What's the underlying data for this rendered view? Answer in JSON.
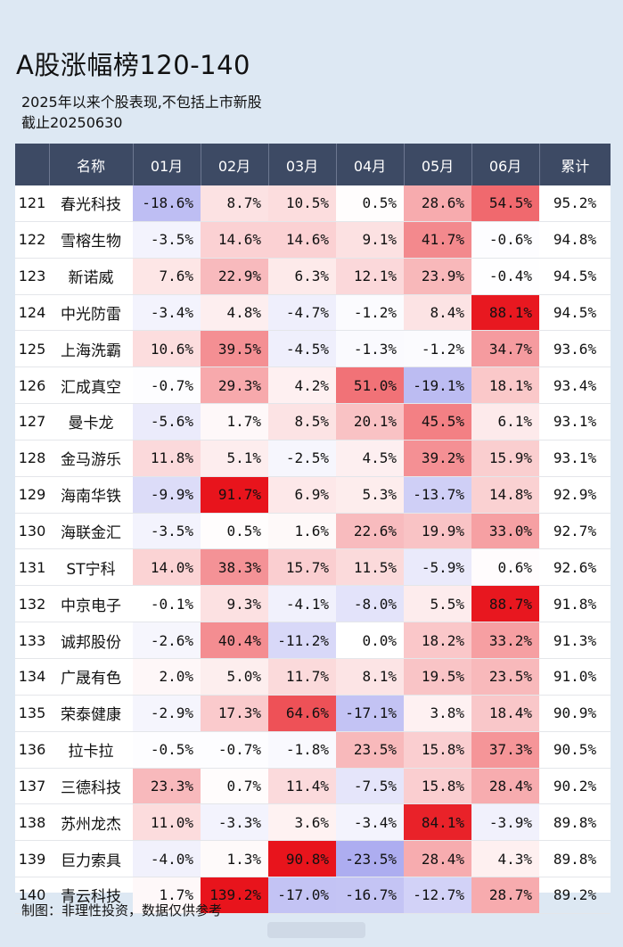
{
  "title": "A股涨幅榜120-140",
  "subtitle": "2025年以来个股表现,不包括上市新股",
  "date_note": "截止20250630",
  "footer": "制图：非理性投资，数据仅供参考",
  "headers": [
    "",
    "名称",
    "01月",
    "02月",
    "03月",
    "04月",
    "05月",
    "06月",
    "累计"
  ],
  "colors": {
    "header_bg": "#3d4a64",
    "positive": "#e8141c",
    "negative": "#5a5ae0",
    "background": "#dde8f3"
  },
  "rows": [
    {
      "rank": "121",
      "name": "春光科技",
      "months": [
        "-18.6%",
        "8.7%",
        "10.5%",
        "0.5%",
        "28.6%",
        "54.5%"
      ],
      "cum": "95.2%"
    },
    {
      "rank": "122",
      "name": "雪榕生物",
      "months": [
        "-3.5%",
        "14.6%",
        "14.6%",
        "9.1%",
        "41.7%",
        "-0.6%"
      ],
      "cum": "94.8%"
    },
    {
      "rank": "123",
      "name": "新诺威",
      "months": [
        "7.6%",
        "22.9%",
        "6.3%",
        "12.1%",
        "23.9%",
        "-0.4%"
      ],
      "cum": "94.5%"
    },
    {
      "rank": "124",
      "name": "中光防雷",
      "months": [
        "-3.4%",
        "4.8%",
        "-4.7%",
        "-1.2%",
        "8.4%",
        "88.1%"
      ],
      "cum": "94.5%"
    },
    {
      "rank": "125",
      "name": "上海洗霸",
      "months": [
        "10.6%",
        "39.5%",
        "-4.5%",
        "-1.3%",
        "-1.2%",
        "34.7%"
      ],
      "cum": "93.6%"
    },
    {
      "rank": "126",
      "name": "汇成真空",
      "months": [
        "-0.7%",
        "29.3%",
        "4.2%",
        "51.0%",
        "-19.1%",
        "18.1%"
      ],
      "cum": "93.4%"
    },
    {
      "rank": "127",
      "name": "曼卡龙",
      "months": [
        "-5.6%",
        "1.7%",
        "8.5%",
        "20.1%",
        "45.5%",
        "6.1%"
      ],
      "cum": "93.1%"
    },
    {
      "rank": "128",
      "name": "金马游乐",
      "months": [
        "11.8%",
        "5.1%",
        "-2.5%",
        "4.5%",
        "39.2%",
        "15.9%"
      ],
      "cum": "93.1%"
    },
    {
      "rank": "129",
      "name": "海南华铁",
      "months": [
        "-9.9%",
        "91.7%",
        "6.9%",
        "5.3%",
        "-13.7%",
        "14.8%"
      ],
      "cum": "92.9%"
    },
    {
      "rank": "130",
      "name": "海联金汇",
      "months": [
        "-3.5%",
        "0.5%",
        "1.6%",
        "22.6%",
        "19.9%",
        "33.0%"
      ],
      "cum": "92.7%"
    },
    {
      "rank": "131",
      "name": "ST宁科",
      "months": [
        "14.0%",
        "38.3%",
        "15.7%",
        "11.5%",
        "-5.9%",
        "0.6%"
      ],
      "cum": "92.6%"
    },
    {
      "rank": "132",
      "name": "中京电子",
      "months": [
        "-0.1%",
        "9.3%",
        "-4.1%",
        "-8.0%",
        "5.5%",
        "88.7%"
      ],
      "cum": "91.8%"
    },
    {
      "rank": "133",
      "name": "诚邦股份",
      "months": [
        "-2.6%",
        "40.4%",
        "-11.2%",
        "0.0%",
        "18.2%",
        "33.2%"
      ],
      "cum": "91.3%"
    },
    {
      "rank": "134",
      "name": "广晟有色",
      "months": [
        "2.0%",
        "5.0%",
        "11.7%",
        "8.1%",
        "19.5%",
        "23.5%"
      ],
      "cum": "91.0%"
    },
    {
      "rank": "135",
      "name": "荣泰健康",
      "months": [
        "-2.9%",
        "17.3%",
        "64.6%",
        "-17.1%",
        "3.8%",
        "18.4%"
      ],
      "cum": "90.9%"
    },
    {
      "rank": "136",
      "name": "拉卡拉",
      "months": [
        "-0.5%",
        "-0.7%",
        "-1.8%",
        "23.5%",
        "15.8%",
        "37.3%"
      ],
      "cum": "90.5%"
    },
    {
      "rank": "137",
      "name": "三德科技",
      "months": [
        "23.3%",
        "0.7%",
        "11.4%",
        "-7.5%",
        "15.8%",
        "28.4%"
      ],
      "cum": "90.2%"
    },
    {
      "rank": "138",
      "name": "苏州龙杰",
      "months": [
        "11.0%",
        "-3.3%",
        "3.6%",
        "-3.4%",
        "84.1%",
        "-3.9%"
      ],
      "cum": "89.8%"
    },
    {
      "rank": "139",
      "name": "巨力索具",
      "months": [
        "-4.0%",
        "1.3%",
        "90.8%",
        "-23.5%",
        "28.4%",
        "4.3%"
      ],
      "cum": "89.8%"
    },
    {
      "rank": "140",
      "name": "青云科技",
      "months": [
        "1.7%",
        "139.2%",
        "-17.0%",
        "-16.7%",
        "-12.7%",
        "28.7%"
      ],
      "cum": "89.2%"
    }
  ]
}
